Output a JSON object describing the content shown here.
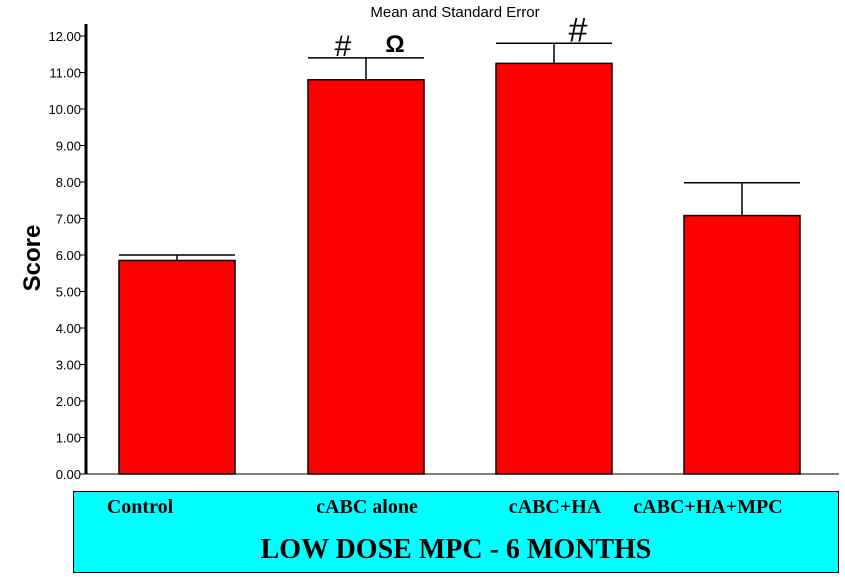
{
  "chart_data": {
    "type": "bar",
    "title": "Mean and Standard Error",
    "ylabel": "Score",
    "xlabel": "LOW DOSE MPC - 6 MONTHS",
    "ylim": [
      0,
      12
    ],
    "yticks": [
      "0.00",
      "1.00",
      "2.00",
      "3.00",
      "4.00",
      "5.00",
      "6.00",
      "7.00",
      "8.00",
      "9.00",
      "10.00",
      "11.00",
      "12.00"
    ],
    "categories": [
      "Control",
      "cAB​C alone",
      "cABC+HA",
      "cABC+HA+MPC"
    ],
    "series": [
      {
        "values": [
          5.85,
          10.8,
          11.25,
          7.08
        ],
        "errors": [
          0.15,
          0.6,
          0.55,
          0.9
        ],
        "color": "#ff0000"
      }
    ],
    "annotations": [
      {
        "category": 1,
        "symbols": [
          "#",
          "Ω"
        ]
      },
      {
        "category": 2,
        "symbols": [
          "#"
        ]
      }
    ],
    "grid": false
  }
}
